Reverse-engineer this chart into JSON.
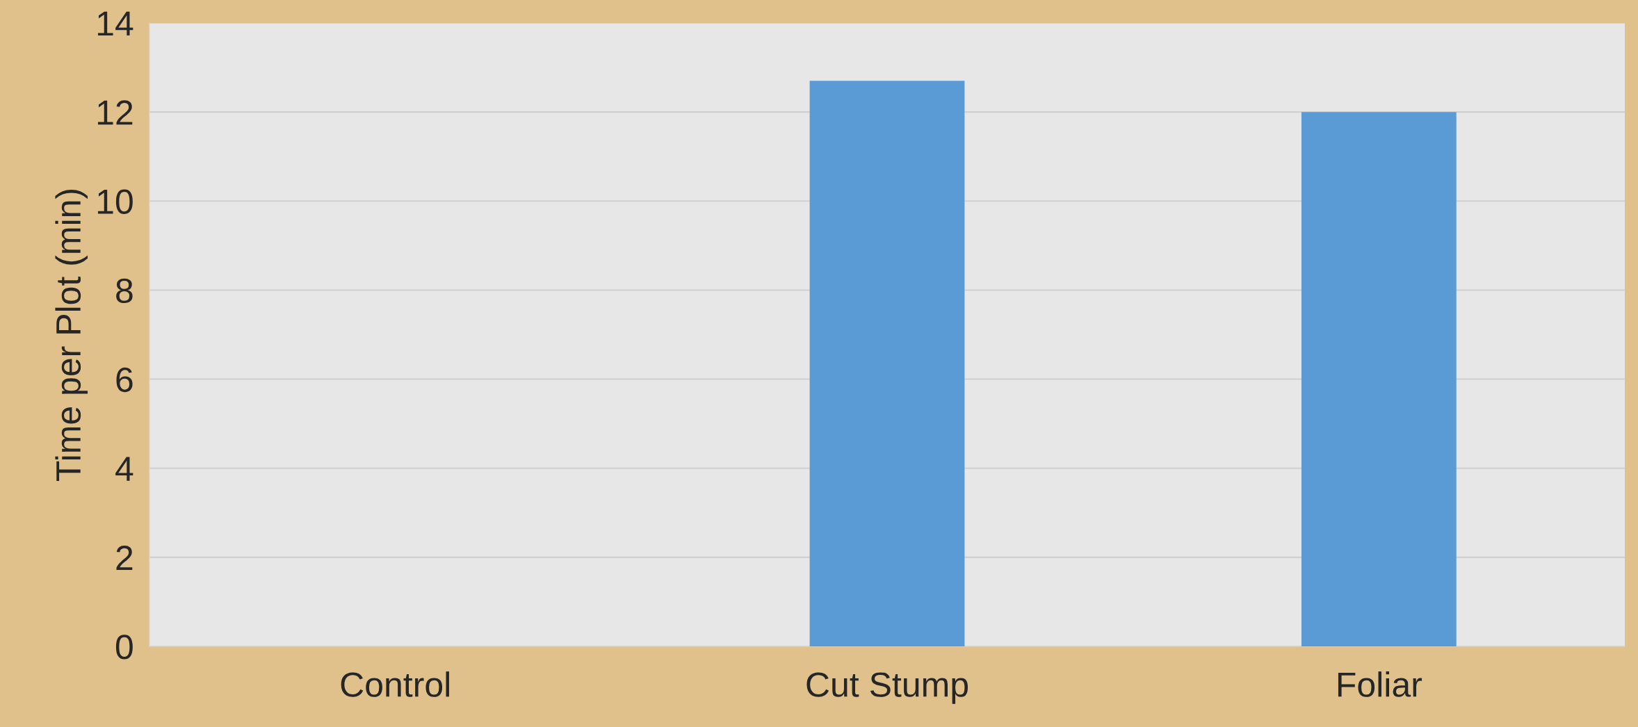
{
  "chart_data": {
    "type": "bar",
    "ylabel": "Time per Plot (min)",
    "categories": [
      "Control",
      "Cut Stump",
      "Foliar"
    ],
    "values": [
      0,
      12.7,
      12.0
    ],
    "color": "#5b9bd5",
    "ylim": [
      0,
      14
    ],
    "yticks": [
      0,
      2,
      4,
      6,
      8,
      10,
      12,
      14
    ],
    "grid": "y",
    "legend": false
  }
}
